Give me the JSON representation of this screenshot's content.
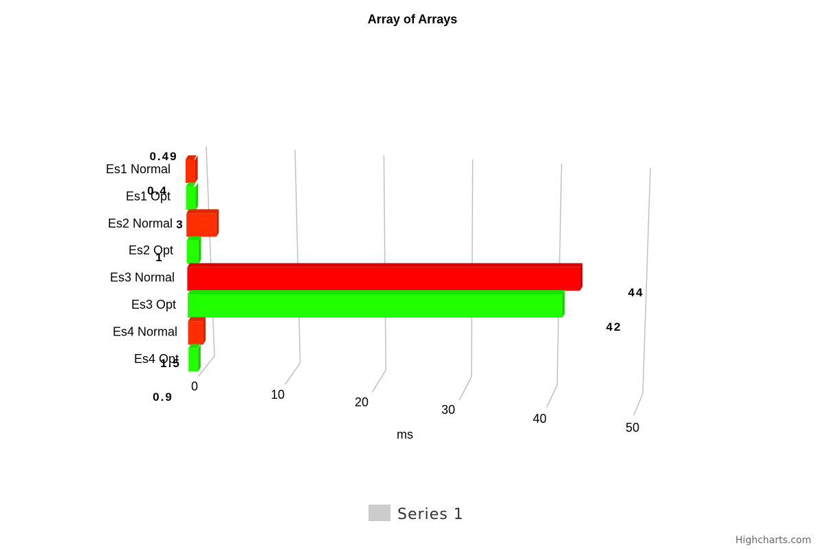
{
  "chart_data": {
    "type": "bar",
    "orientation": "horizontal",
    "title": "Array of Arrays",
    "categories": [
      "Es1 Normal",
      "Es1 Opt",
      "Es2 Normal",
      "Es2 Opt",
      "Es3 Normal",
      "Es3 Opt",
      "Es4 Normal",
      "Es4 Opt"
    ],
    "series": [
      {
        "name": "Series 1",
        "values": [
          0.49,
          0.4,
          3,
          1,
          44,
          42,
          1.5,
          0.9
        ]
      }
    ],
    "data_labels": [
      "0.49",
      "0.4",
      "3",
      "1",
      "44",
      "42",
      "1.5",
      "0.9"
    ],
    "point_colors": [
      "#ff2e00",
      "#22ff00",
      "#ff2e00",
      "#22ff00",
      "#ff0000",
      "#22ff00",
      "#ff2e00",
      "#22ff00"
    ],
    "xlabel": "ms",
    "ylabel": "",
    "xlim": [
      0,
      50
    ],
    "ticks": [
      "0",
      "10",
      "20",
      "30",
      "40",
      "50"
    ],
    "tick_values": [
      0,
      10,
      20,
      30,
      40,
      50
    ],
    "grid": true,
    "legend": "bottom-center",
    "render": "3d"
  },
  "credits": "Highcharts.com"
}
